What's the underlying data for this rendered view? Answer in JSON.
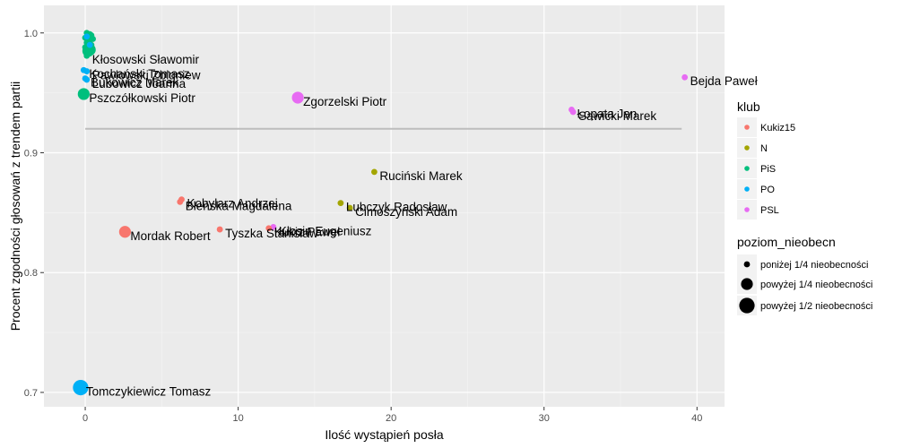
{
  "chart_data": {
    "type": "scatter",
    "xlabel": "Ilość wystąpień posła",
    "ylabel": "Procent zgodności głosowań z trendem partii",
    "xlim": [
      -2.7,
      41.8
    ],
    "ylim": [
      0.688,
      1.023
    ],
    "x_ticks": [
      0,
      10,
      20,
      30,
      40
    ],
    "x_tick_labels": [
      "0",
      "10",
      "20",
      "30",
      "40"
    ],
    "y_ticks": [
      0.7,
      0.8,
      0.9,
      1.0
    ],
    "y_tick_labels": [
      "0.7",
      "0.8",
      "0.9",
      "1.0"
    ],
    "grid": true,
    "reference_line": {
      "y": 0.92,
      "x_start": 0,
      "x_end": 39,
      "color": "#bdbdbd"
    },
    "legend_placement": "right",
    "color_legend": {
      "title": "klub",
      "entries": [
        {
          "label": "Kukiz15",
          "color": "#F8766D"
        },
        {
          "label": "N",
          "color": "#A3A500"
        },
        {
          "label": "PiS",
          "color": "#00BF7D"
        },
        {
          "label": "PO",
          "color": "#00B0F6"
        },
        {
          "label": "PSL",
          "color": "#E76BF3"
        }
      ]
    },
    "size_legend": {
      "title": "poziom_nieobecn",
      "entries": [
        {
          "label": "poniżej 1/4 nieobecności",
          "size": 1
        },
        {
          "label": "powyżej 1/4 nieobecności",
          "size": 2
        },
        {
          "label": "powyżej 1/2 nieobecności",
          "size": 3
        }
      ]
    },
    "points": [
      {
        "x": 0.1,
        "y": 1.0,
        "club": "PiS",
        "size": 1,
        "label": ""
      },
      {
        "x": 0.3,
        "y": 0.999,
        "club": "PiS",
        "size": 1,
        "label": ""
      },
      {
        "x": 0.4,
        "y": 0.998,
        "club": "PiS",
        "size": 1,
        "label": ""
      },
      {
        "x": 0.2,
        "y": 0.997,
        "club": "PiS",
        "size": 1,
        "label": ""
      },
      {
        "x": 0.0,
        "y": 0.996,
        "club": "PiS",
        "size": 1,
        "label": ""
      },
      {
        "x": 0.5,
        "y": 0.995,
        "club": "PiS",
        "size": 1,
        "label": ""
      },
      {
        "x": 0.3,
        "y": 0.994,
        "club": "PiS",
        "size": 1,
        "label": ""
      },
      {
        "x": 0.1,
        "y": 0.992,
        "club": "PiS",
        "size": 1,
        "label": ""
      },
      {
        "x": 0.4,
        "y": 0.99,
        "club": "PiS",
        "size": 1,
        "label": ""
      },
      {
        "x": 0.2,
        "y": 0.989,
        "club": "PiS",
        "size": 1,
        "label": ""
      },
      {
        "x": 0.0,
        "y": 0.988,
        "club": "PiS",
        "size": 1,
        "label": ""
      },
      {
        "x": 0.3,
        "y": 0.986,
        "club": "PiS",
        "size": 2,
        "label": ""
      },
      {
        "x": 0.2,
        "y": 0.985,
        "club": "PiS",
        "size": 2,
        "label": ""
      },
      {
        "x": 0.1,
        "y": 0.997,
        "club": "PO",
        "size": 1,
        "label": ""
      },
      {
        "x": 0.3,
        "y": 0.99,
        "club": "PO",
        "size": 1,
        "label": ""
      },
      {
        "x": 0.1,
        "y": 0.981,
        "club": "PiS",
        "size": 1,
        "label": "Kłosowski Sławomir"
      },
      {
        "x": -0.1,
        "y": 0.969,
        "club": "PO",
        "size": 1,
        "label": "Kochański Tomasz"
      },
      {
        "x": 0.1,
        "y": 0.968,
        "club": "PO",
        "size": 1,
        "label": "Pawlowski Zbigniew"
      },
      {
        "x": 0.0,
        "y": 0.962,
        "club": "PO",
        "size": 1,
        "label": "Bukowicz Marek"
      },
      {
        "x": 0.1,
        "y": 0.961,
        "club": "PO",
        "size": 1,
        "label": "Lubowicz Joanna"
      },
      {
        "x": -0.1,
        "y": 0.949,
        "club": "PiS",
        "size": 2,
        "label": "Pszczółkowski Piotr"
      },
      {
        "x": 13.9,
        "y": 0.946,
        "club": "PSL",
        "size": 2,
        "label": "Zgorzelski Piotr"
      },
      {
        "x": 31.8,
        "y": 0.936,
        "club": "PSL",
        "size": 1,
        "label": "Łopata Jan"
      },
      {
        "x": 31.9,
        "y": 0.934,
        "club": "PSL",
        "size": 1,
        "label": "Sawicki Marek"
      },
      {
        "x": 39.2,
        "y": 0.963,
        "club": "PSL",
        "size": 1,
        "label": "Bejda Paweł"
      },
      {
        "x": 18.9,
        "y": 0.884,
        "club": "N",
        "size": 1,
        "label": "Ruciński Marek"
      },
      {
        "x": 6.3,
        "y": 0.861,
        "club": "Kukiz15",
        "size": 1,
        "label": "Kobylarz Andrzej"
      },
      {
        "x": 6.2,
        "y": 0.859,
        "club": "Kukiz15",
        "size": 1,
        "label": "Błeńska Magdalena"
      },
      {
        "x": 16.7,
        "y": 0.858,
        "club": "N",
        "size": 1,
        "label": "Lubczyk Radosław"
      },
      {
        "x": 17.3,
        "y": 0.854,
        "club": "N",
        "size": 1,
        "label": "Cimoszyński Adam"
      },
      {
        "x": 2.6,
        "y": 0.834,
        "club": "Kukiz15",
        "size": 2,
        "label": "Mordak Robert"
      },
      {
        "x": 8.8,
        "y": 0.836,
        "club": "Kukiz15",
        "size": 1,
        "label": "Tyszka Stanisław"
      },
      {
        "x": 12.3,
        "y": 0.838,
        "club": "PSL",
        "size": 1,
        "label": "Kłosin Eugeniusz"
      },
      {
        "x": 12.0,
        "y": 0.837,
        "club": "Kukiz15",
        "size": 1,
        "label": "Kukiz Paweł"
      },
      {
        "x": -0.3,
        "y": 0.704,
        "club": "PO",
        "size": 3,
        "label": "Tomczykiewicz Tomasz"
      }
    ]
  }
}
